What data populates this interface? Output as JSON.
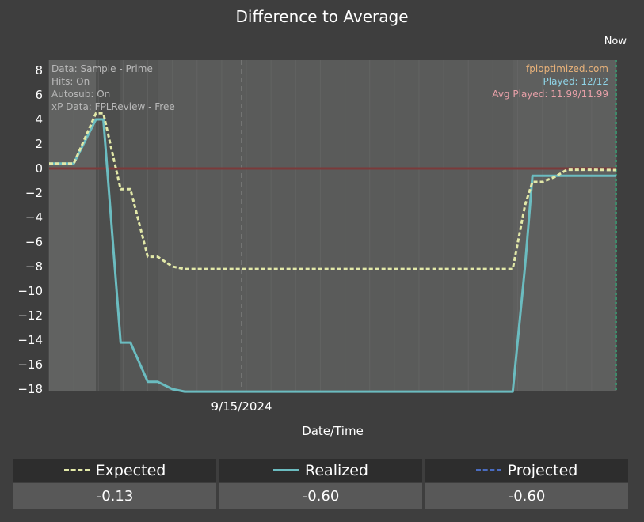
{
  "chart_data": {
    "type": "line",
    "title": "Difference to Average",
    "xlabel": "Date/Time",
    "ylabel": "",
    "ylim": [
      -18,
      8
    ],
    "y_ticks": [
      8,
      6,
      4,
      2,
      0,
      -2,
      -4,
      -6,
      -8,
      -10,
      -12,
      -14,
      -16,
      -18
    ],
    "x_tick_labels": [
      "9/15/2024"
    ],
    "now_label": "Now",
    "grid": true,
    "series": [
      {
        "name": "Expected",
        "style": "dashed",
        "color": "#e2e8a8",
        "x": [
          1,
          2,
          2.9,
          3.2,
          3.9,
          4.3,
          5.0,
          5.4,
          6.0,
          6.5,
          7,
          8,
          9,
          10,
          11,
          12,
          13,
          14,
          15,
          16,
          17,
          18,
          19,
          19.8,
          20.3,
          20.6,
          21.0,
          21.5,
          22,
          23,
          24
        ],
        "y": [
          0.4,
          0.4,
          4.5,
          4.5,
          -1.7,
          -1.7,
          -7.2,
          -7.2,
          -8.0,
          -8.2,
          -8.2,
          -8.2,
          -8.2,
          -8.2,
          -8.2,
          -8.2,
          -8.2,
          -8.2,
          -8.2,
          -8.2,
          -8.2,
          -8.2,
          -8.2,
          -8.2,
          -3.0,
          -1.1,
          -1.1,
          -0.7,
          -0.1,
          -0.1,
          -0.13
        ]
      },
      {
        "name": "Realized",
        "style": "solid",
        "color": "#6bbcc0",
        "x": [
          1,
          2,
          2.9,
          3.2,
          3.9,
          4.3,
          5.0,
          5.4,
          6.0,
          6.5,
          7,
          8,
          9,
          10,
          11,
          12,
          13,
          14,
          15,
          16,
          17,
          18,
          19,
          19.8,
          20.3,
          20.6,
          21.0,
          21.5,
          22,
          23,
          24
        ],
        "y": [
          0.4,
          0.4,
          4.0,
          4.0,
          -14.2,
          -14.2,
          -17.4,
          -17.4,
          -18.0,
          -18.2,
          -18.2,
          -18.2,
          -18.2,
          -18.2,
          -18.2,
          -18.2,
          -18.2,
          -18.2,
          -18.2,
          -18.2,
          -18.2,
          -18.2,
          -18.2,
          -18.2,
          -8.0,
          -0.6,
          -0.6,
          -0.6,
          -0.6,
          -0.6,
          -0.6
        ]
      }
    ],
    "zero_line_color": "#7a3a3a",
    "info_left": [
      "Data: Sample - Prime",
      "Hits: On",
      "Autosub: On",
      "xP Data: FPLReview - Free"
    ],
    "info_right": [
      "fploptimized.com",
      "Played: 12/12",
      "Avg Played: 11.99/11.99"
    ],
    "info_right_colors": [
      "#e8b27a",
      "#8fd4e8",
      "#e8a0a8"
    ]
  },
  "legend": [
    {
      "name": "Expected",
      "value": "-0.13",
      "style": "dashed",
      "color": "#e2e8a8"
    },
    {
      "name": "Realized",
      "value": "-0.60",
      "style": "solid",
      "color": "#6bbcc0"
    },
    {
      "name": "Projected",
      "value": "-0.60",
      "style": "dashed",
      "color": "#4a6cc0"
    }
  ]
}
